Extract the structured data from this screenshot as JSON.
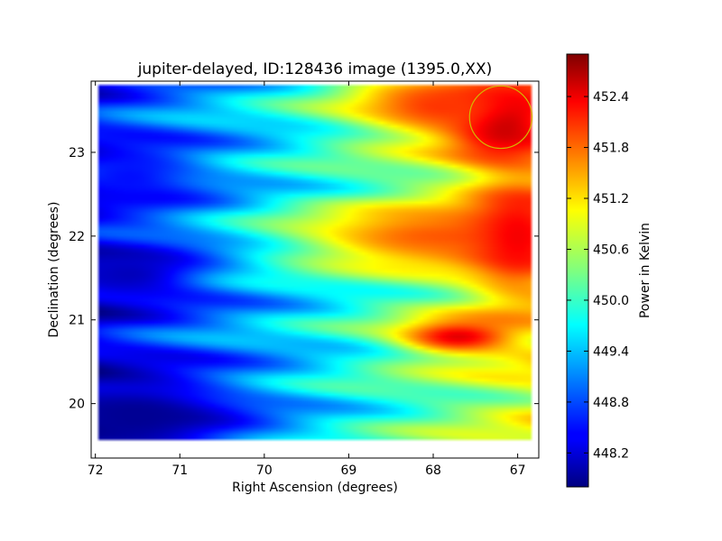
{
  "chart_data": {
    "type": "heatmap",
    "title": "jupiter-delayed, ID:128436 image (1395.0,XX)",
    "xlabel": "Right Ascension (degrees)",
    "ylabel": "Declination (degrees)",
    "xlim": [
      72.05,
      66.75
    ],
    "ylim": [
      19.35,
      23.85
    ],
    "x_ticks": [
      72,
      71,
      70,
      69,
      68,
      67
    ],
    "x_tick_labels": [
      "72",
      "71",
      "70",
      "69",
      "68",
      "67"
    ],
    "y_ticks": [
      20,
      21,
      22,
      23
    ],
    "y_tick_labels": [
      "20",
      "21",
      "22",
      "23"
    ],
    "colorbar": {
      "label": "Power in Kelvin",
      "colormap": "jet",
      "vmin": 447.8,
      "vmax": 452.9,
      "ticks": [
        448.2,
        448.8,
        449.4,
        450.0,
        450.6,
        451.2,
        451.8,
        452.4
      ],
      "tick_labels": [
        "448.2",
        "448.8",
        "449.4",
        "450.0",
        "450.6",
        "451.2",
        "451.8",
        "452.4"
      ]
    },
    "grid": false,
    "marker": {
      "shape": "circle",
      "ra": 67.2,
      "dec": 23.42,
      "radius_deg": 0.37,
      "color": "#d4b800"
    },
    "field_extent": {
      "ra": [
        71.95,
        66.85
      ],
      "dec": [
        19.55,
        23.8
      ]
    },
    "hotspots": [
      {
        "ra": 67.2,
        "dec": 23.4,
        "value": 452.9,
        "sra": 0.45,
        "sdec": 0.35
      },
      {
        "ra": 67.9,
        "dec": 23.55,
        "value": 452.0,
        "sra": 0.75,
        "sdec": 0.25
      },
      {
        "ra": 68.0,
        "dec": 22.0,
        "value": 451.8,
        "sra": 1.2,
        "sdec": 0.28
      },
      {
        "ra": 67.0,
        "dec": 22.0,
        "value": 452.3,
        "sra": 0.4,
        "sdec": 0.5
      },
      {
        "ra": 67.7,
        "dec": 20.8,
        "value": 452.4,
        "sra": 0.5,
        "sdec": 0.15
      },
      {
        "ra": 71.5,
        "dec": 19.85,
        "value": 447.9,
        "sra": 0.8,
        "sdec": 0.35
      },
      {
        "ra": 71.6,
        "dec": 21.55,
        "value": 448.1,
        "sra": 0.6,
        "sdec": 0.22
      },
      {
        "ra": 71.6,
        "dec": 22.7,
        "value": 448.5,
        "sra": 0.55,
        "sdec": 0.28
      }
    ]
  }
}
